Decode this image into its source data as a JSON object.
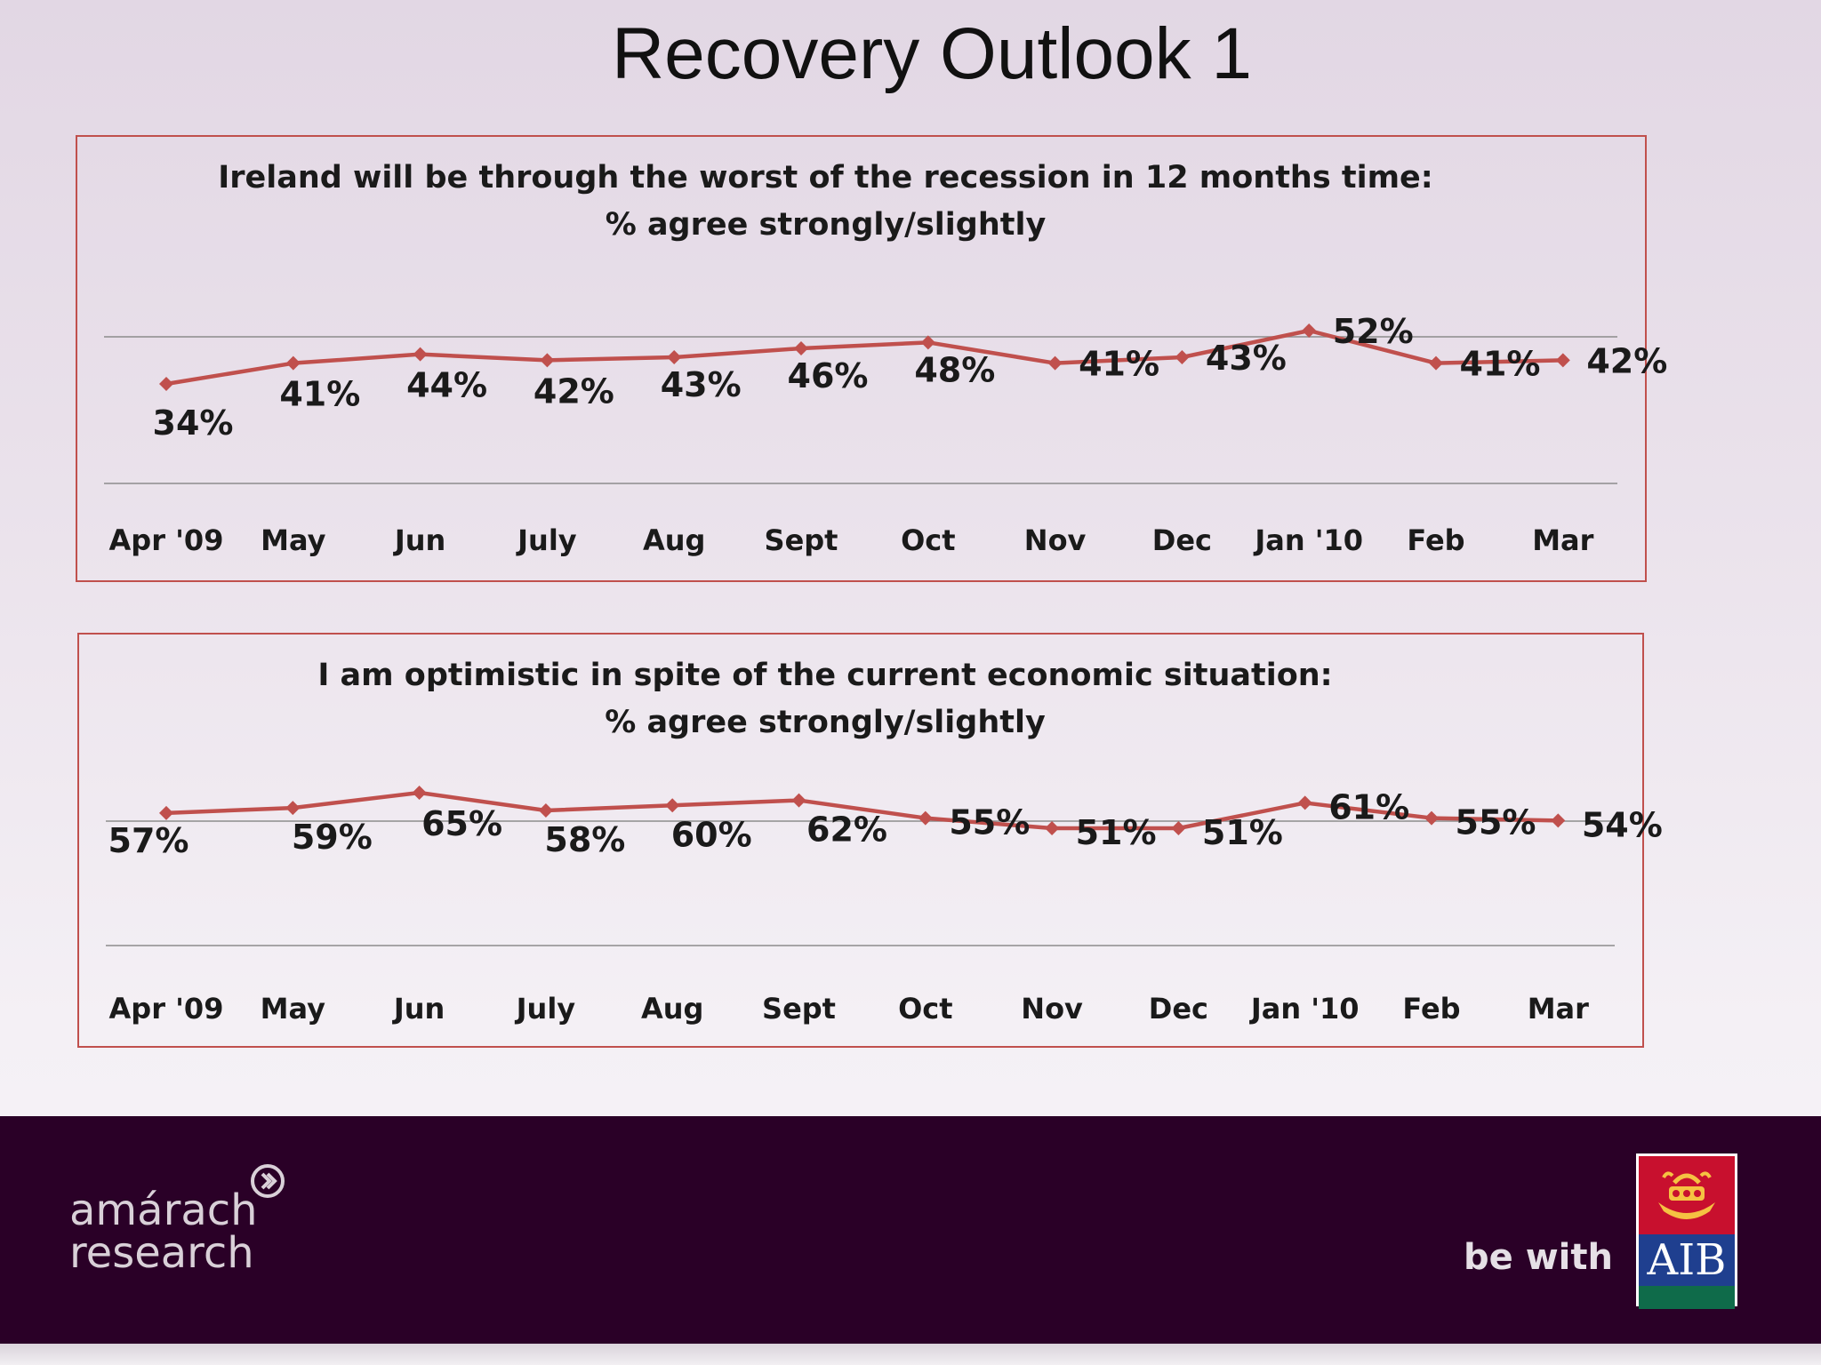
{
  "slide_title": "Recovery Outlook 1",
  "colors": {
    "line": "#c0504d",
    "panel_border": "#c0504d",
    "footer_bg": "#2a0027"
  },
  "chart_data": [
    {
      "type": "line",
      "title_line1": "Ireland will be through the worst of the recession in 12 months time:",
      "title_line2": "% agree strongly/slightly",
      "categories": [
        "Apr '09",
        "May",
        "Jun",
        "July",
        "Aug",
        "Sept",
        "Oct",
        "Nov",
        "Dec",
        "Jan '10",
        "Feb",
        "Mar"
      ],
      "values": [
        34,
        41,
        44,
        42,
        43,
        46,
        48,
        41,
        43,
        52,
        41,
        42
      ],
      "data_labels": [
        "34%",
        "41%",
        "44%",
        "42%",
        "43%",
        "46%",
        "48%",
        "41%",
        "43%",
        "52%",
        "41%",
        "42%"
      ],
      "grid": true,
      "legend": "none"
    },
    {
      "type": "line",
      "title_line1": "I am optimistic  in spite of the current economic  situation:",
      "title_line2": "% agree strongly/slightly",
      "categories": [
        "Apr '09",
        "May",
        "Jun",
        "July",
        "Aug",
        "Sept",
        "Oct",
        "Nov",
        "Dec",
        "Jan '10",
        "Feb",
        "Mar"
      ],
      "values": [
        57,
        59,
        65,
        58,
        60,
        62,
        55,
        51,
        51,
        61,
        55,
        54
      ],
      "data_labels": [
        "57%",
        "59%",
        "65%",
        "58%",
        "60%",
        "62%",
        "55%",
        "51%",
        "51%",
        "61%",
        "55%",
        "54%"
      ],
      "grid": true,
      "legend": "none"
    }
  ],
  "footer": {
    "brand_line1": "amárach",
    "brand_line2": "research",
    "tagline": "be with",
    "logo_text": "AIB"
  }
}
